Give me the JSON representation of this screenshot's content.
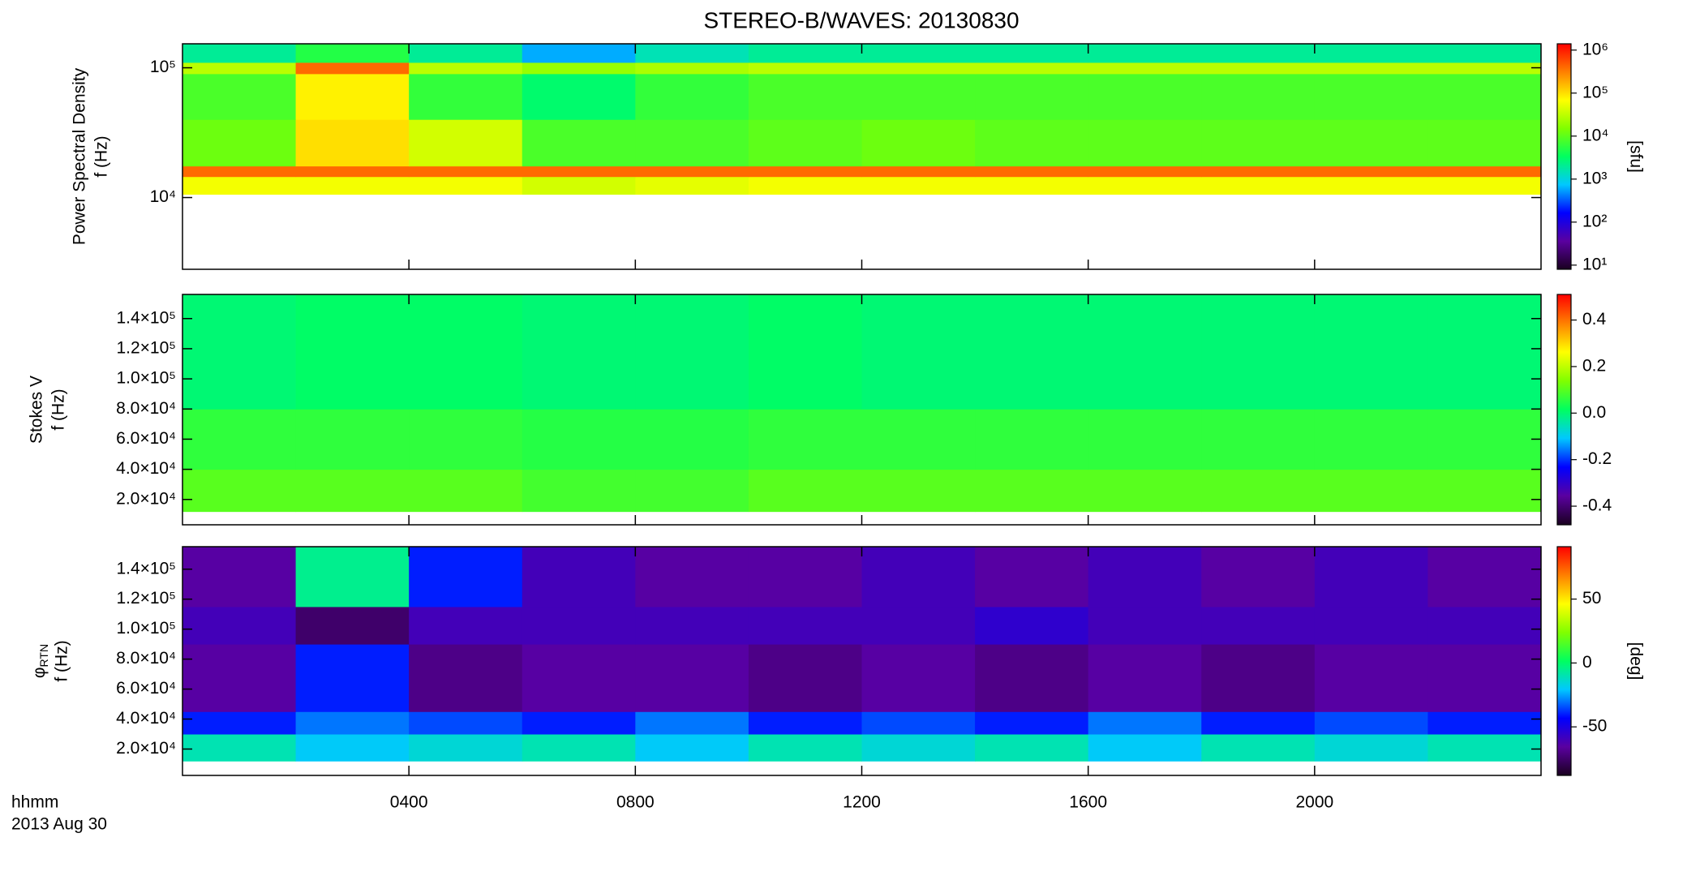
{
  "chart_data": [
    {
      "type": "spectrogram",
      "title": "STEREO-B/WAVES: 20130830",
      "ylabel": "Power Spectral Density",
      "ylabel2": "f (Hz)",
      "ylog": true,
      "xlim": [
        0,
        24
      ],
      "xticks": [
        4,
        8,
        12,
        16,
        20
      ],
      "ylim": [
        2800,
        153000
      ],
      "yticks": [
        {
          "value": 10000,
          "label": "10⁴"
        },
        {
          "value": 100000,
          "label": "10⁵"
        }
      ],
      "xbins": [
        0,
        2,
        4,
        6,
        8,
        10,
        12,
        14,
        16,
        18,
        20,
        22,
        24
      ],
      "ybins": [
        10600,
        14500,
        17500,
        40000,
        90000,
        110000,
        153000
      ],
      "z": [
        [
          60000,
          60000,
          60000,
          40000,
          50000,
          60000,
          60000,
          60000,
          60000,
          60000,
          60000,
          60000
        ],
        [
          400000,
          400000,
          400000,
          400000,
          400000,
          400000,
          400000,
          400000,
          400000,
          400000,
          400000,
          400000
        ],
        [
          12000,
          100000,
          40000,
          8000,
          8000,
          10000,
          12000,
          10000,
          10000,
          10000,
          10000,
          10000
        ],
        [
          8000,
          80000,
          6000,
          3000,
          6000,
          8000,
          8000,
          8000,
          8000,
          8000,
          8000,
          8000
        ],
        [
          30000,
          400000,
          30000,
          20000,
          25000,
          30000,
          30000,
          30000,
          30000,
          30000,
          30000,
          30000
        ],
        [
          2000,
          5000,
          2000,
          600,
          1500,
          2000,
          2000,
          2000,
          2000,
          2000,
          2000,
          2000
        ]
      ],
      "zlog": true,
      "zlim": [
        8,
        1400000
      ],
      "zticks": [
        {
          "value": 10,
          "label": "10¹"
        },
        {
          "value": 100,
          "label": "10²"
        },
        {
          "value": 1000,
          "label": "10³"
        },
        {
          "value": 10000,
          "label": "10⁴"
        },
        {
          "value": 100000,
          "label": "10⁵"
        },
        {
          "value": 1000000,
          "label": "10⁶"
        }
      ],
      "zlabel": "[sfu]",
      "colormap": [
        "#1a0020",
        "#5a00a0",
        "#0000ff",
        "#00c8ff",
        "#00ff60",
        "#80ff00",
        "#ffff00",
        "#ff8000",
        "#ff0000"
      ]
    },
    {
      "type": "spectrogram",
      "ylabel": "Stokes V",
      "ylabel2": "f (Hz)",
      "xlim": [
        0,
        24
      ],
      "xticks": [
        4,
        8,
        12,
        16,
        20
      ],
      "ylim": [
        3200,
        156000
      ],
      "yticks": [
        {
          "value": 20000,
          "label": "2.0×10⁴"
        },
        {
          "value": 40000,
          "label": "4.0×10⁴"
        },
        {
          "value": 60000,
          "label": "6.0×10⁴"
        },
        {
          "value": 80000,
          "label": "8.0×10⁴"
        },
        {
          "value": 100000,
          "label": "1.0×10⁵"
        },
        {
          "value": 120000,
          "label": "1.2×10⁵"
        },
        {
          "value": 140000,
          "label": "1.4×10⁵"
        }
      ],
      "xbins": [
        0,
        2,
        4,
        6,
        8,
        10,
        12,
        14,
        16,
        18,
        20,
        22,
        24
      ],
      "ybins": [
        12000,
        40000,
        80000,
        156000
      ],
      "z": [
        [
          0.1,
          0.1,
          0.1,
          0.08,
          0.08,
          0.1,
          0.1,
          0.1,
          0.1,
          0.1,
          0.1,
          0.1
        ],
        [
          0.06,
          0.06,
          0.06,
          0.05,
          0.05,
          0.06,
          0.06,
          0.06,
          0.06,
          0.06,
          0.06,
          0.06
        ],
        [
          0.0,
          0.01,
          0.01,
          0.0,
          0.0,
          0.01,
          0.0,
          0.0,
          0.0,
          0.0,
          0.0,
          0.0
        ]
      ],
      "zlim": [
        -0.48,
        0.51
      ],
      "zticks": [
        -0.4,
        -0.2,
        {
          "value": 0,
          "label": "0.0"
        },
        0.2,
        0.4
      ],
      "colormap": [
        "#1a0020",
        "#5a00a0",
        "#0000ff",
        "#00c8ff",
        "#00ff60",
        "#80ff00",
        "#ffff00",
        "#ff8000",
        "#ff0000"
      ]
    },
    {
      "type": "spectrogram",
      "ylabel_symbol": "φ",
      "ylabel_subscript": "RTN",
      "ylabel2": "f (Hz)",
      "xlim": [
        0,
        24
      ],
      "xticks": [
        {
          "value": 4,
          "label": "0400"
        },
        {
          "value": 8,
          "label": "0800"
        },
        {
          "value": 12,
          "label": "1200"
        },
        {
          "value": 16,
          "label": "1600"
        },
        {
          "value": 20,
          "label": "2000"
        }
      ],
      "xlabel": "hhmm",
      "date": "2013 Aug 30",
      "ylim": [
        2400,
        155000
      ],
      "yticks": [
        {
          "value": 20000,
          "label": "2.0×10⁴"
        },
        {
          "value": 40000,
          "label": "4.0×10⁴"
        },
        {
          "value": 60000,
          "label": "6.0×10⁴"
        },
        {
          "value": 80000,
          "label": "8.0×10⁴"
        },
        {
          "value": 100000,
          "label": "1.0×10⁵"
        },
        {
          "value": 120000,
          "label": "1.2×10⁵"
        },
        {
          "value": 140000,
          "label": "1.4×10⁵"
        }
      ],
      "xbins": [
        0,
        2,
        4,
        6,
        8,
        10,
        12,
        14,
        16,
        18,
        20,
        22,
        24
      ],
      "ybins": [
        12000,
        30000,
        45000,
        90000,
        115000,
        155000
      ],
      "z": [
        [
          -10,
          -20,
          -15,
          -10,
          -20,
          -10,
          -15,
          -10,
          -20,
          -10,
          -15,
          -10
        ],
        [
          -40,
          -30,
          -35,
          -40,
          -30,
          -40,
          -35,
          -40,
          -30,
          -40,
          -35,
          -40
        ],
        [
          -65,
          -40,
          -70,
          -65,
          -65,
          -70,
          -65,
          -70,
          -65,
          -70,
          -65,
          -65
        ],
        [
          -60,
          -75,
          -60,
          -60,
          -60,
          -60,
          -60,
          -55,
          -60,
          -60,
          -60,
          -60
        ],
        [
          -65,
          -5,
          -40,
          -60,
          -65,
          -65,
          -60,
          -65,
          -60,
          -65,
          -60,
          -65
        ]
      ],
      "zlim": [
        -88,
        91
      ],
      "zticks": [
        -50,
        0,
        50
      ],
      "zlabel": "[deg]",
      "colormap": [
        "#1a0020",
        "#5a00a0",
        "#0000ff",
        "#00c8ff",
        "#00ff60",
        "#80ff00",
        "#ffff00",
        "#ff8000",
        "#ff0000"
      ]
    }
  ]
}
